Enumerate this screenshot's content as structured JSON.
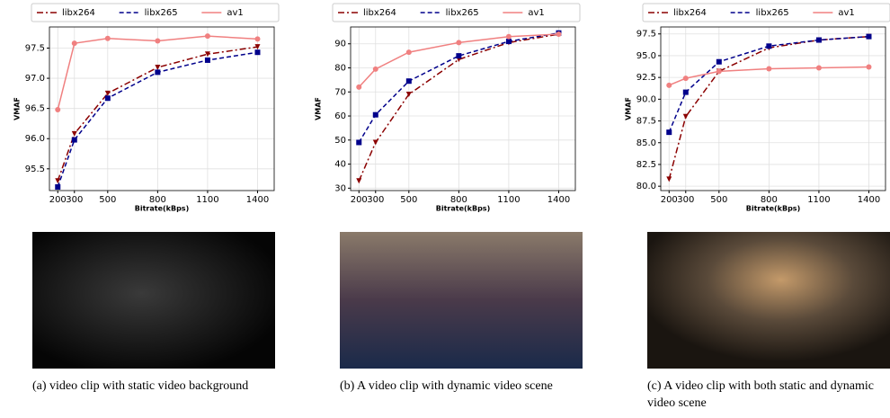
{
  "chart_data": [
    {
      "type": "line",
      "x": [
        200,
        300,
        500,
        800,
        1100,
        1400
      ],
      "xlim": [
        150,
        1500
      ],
      "xticks": [
        200,
        300,
        500,
        800,
        1100,
        1400
      ],
      "ylim": [
        95.14,
        97.85
      ],
      "yticks": [
        95.5,
        {
          "value": 96,
          "label": "96.0"
        },
        96.5,
        {
          "value": 97,
          "label": "97.0"
        },
        97.5
      ],
      "xlabel": "Bitrate(kBps)",
      "ylabel": "VMAF",
      "grid": true,
      "series": [
        {
          "name": "libx264",
          "color": "#8b0000",
          "style": "dashdot",
          "marker": "triangle",
          "values": [
            95.3,
            96.08,
            96.75,
            97.18,
            97.4,
            97.52
          ]
        },
        {
          "name": "libx265",
          "color": "#00008b",
          "style": "dashed",
          "marker": "square",
          "values": [
            95.2,
            95.98,
            96.67,
            97.1,
            97.3,
            97.43
          ]
        },
        {
          "name": "av1",
          "color": "#f08080",
          "style": "solid",
          "marker": "circle",
          "values": [
            96.48,
            97.58,
            97.66,
            97.62,
            97.7,
            97.65
          ]
        }
      ]
    },
    {
      "type": "line",
      "x": [
        200,
        300,
        500,
        800,
        1100,
        1400
      ],
      "xlim": [
        150,
        1500
      ],
      "xticks": [
        200,
        300,
        500,
        800,
        1100,
        1400
      ],
      "ylim": [
        29,
        97
      ],
      "yticks": [
        30,
        40,
        50,
        60,
        70,
        80,
        90
      ],
      "xlabel": "Bitrate(kBps)",
      "ylabel": "VMAF",
      "grid": true,
      "series": [
        {
          "name": "libx264",
          "color": "#8b0000",
          "style": "dashdot",
          "marker": "triangle",
          "values": [
            33,
            49,
            69,
            83.5,
            90.5,
            94
          ]
        },
        {
          "name": "libx265",
          "color": "#00008b",
          "style": "dashed",
          "marker": "square",
          "values": [
            49,
            60.5,
            74.5,
            85,
            91,
            94.5
          ]
        },
        {
          "name": "av1",
          "color": "#f08080",
          "style": "solid",
          "marker": "circle",
          "values": [
            72,
            79.5,
            86.5,
            90.5,
            93,
            94
          ]
        }
      ]
    },
    {
      "type": "line",
      "x": [
        200,
        300,
        500,
        800,
        1100,
        1400
      ],
      "xlim": [
        150,
        1500
      ],
      "xticks": [
        200,
        300,
        500,
        800,
        1100,
        1400
      ],
      "ylim": [
        79.5,
        98.3
      ],
      "yticks": [
        {
          "value": 80,
          "label": "80.0"
        },
        82.5,
        {
          "value": 85,
          "label": "85.0"
        },
        87.5,
        {
          "value": 90,
          "label": "90.0"
        },
        92.5,
        {
          "value": 95,
          "label": "95.0"
        },
        97.5
      ],
      "xlabel": "Bitrate(kBps)",
      "ylabel": "VMAF",
      "grid": true,
      "series": [
        {
          "name": "libx264",
          "color": "#8b0000",
          "style": "dashdot",
          "marker": "triangle",
          "values": [
            80.8,
            88,
            93.2,
            95.9,
            96.8,
            97.2
          ]
        },
        {
          "name": "libx265",
          "color": "#00008b",
          "style": "dashed",
          "marker": "square",
          "values": [
            86.2,
            90.8,
            94.3,
            96.1,
            96.8,
            97.2
          ]
        },
        {
          "name": "av1",
          "color": "#f08080",
          "style": "solid",
          "marker": "circle",
          "values": [
            91.6,
            92.4,
            93.2,
            93.5,
            93.6,
            93.7
          ]
        }
      ]
    }
  ],
  "captions": [
    "(a) video clip with static video background",
    "(b) A video clip with dynamic video scene",
    "(c) A video clip with both static and dynamic video scene"
  ]
}
